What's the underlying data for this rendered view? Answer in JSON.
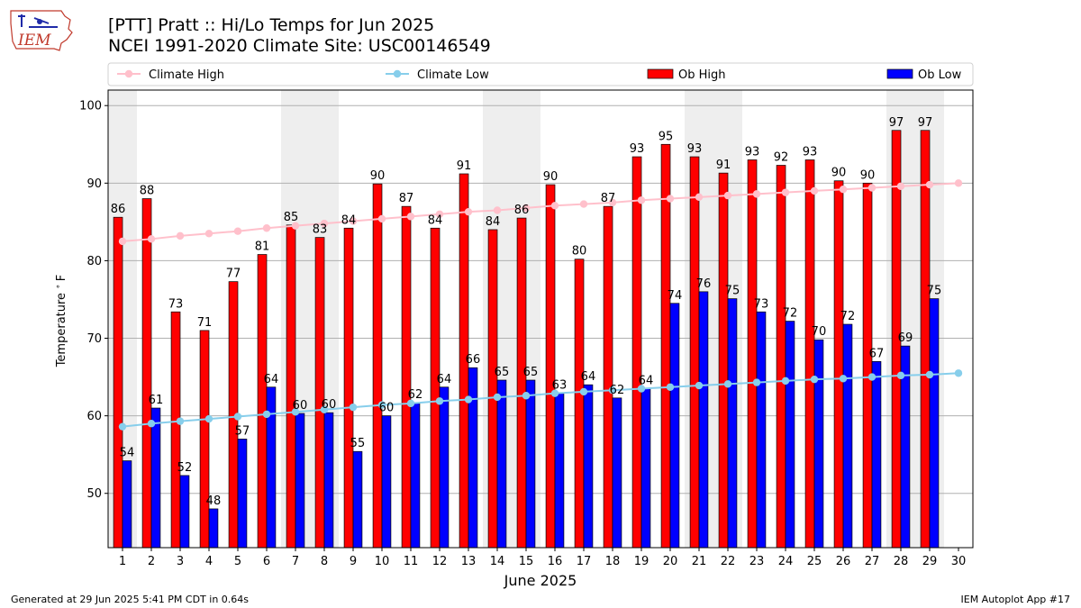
{
  "header": {
    "logo_text": "IEM",
    "title_line1": "[PTT] Pratt :: Hi/Lo Temps for Jun 2025",
    "title_line2": "NCEI 1991-2020 Climate Site: USC00146549"
  },
  "footer": {
    "generated": "Generated at 29 Jun 2025 5:41 PM CDT in 0.64s",
    "app": "IEM Autoplot App #17"
  },
  "colors": {
    "climate_high": "#ffc0cb",
    "climate_low": "#87ceeb",
    "ob_high": "#ff0000",
    "ob_low": "#0000ff",
    "weekend_shade": "#eeeeee",
    "grid": "#b0b0b0"
  },
  "chart_data": {
    "type": "bar",
    "title": "[PTT] Pratt :: Hi/Lo Temps for Jun 2025",
    "xlabel": "June 2025",
    "ylabel": "Temperature °F",
    "ylabel_parts": [
      "Temperature ",
      "∘",
      "F"
    ],
    "ylim": [
      43,
      102
    ],
    "yticks": [
      50,
      60,
      70,
      80,
      90,
      100
    ],
    "xlim": [
      0.5,
      30.5
    ],
    "grid": "y",
    "legend_position": "top",
    "days": [
      1,
      2,
      3,
      4,
      5,
      6,
      7,
      8,
      9,
      10,
      11,
      12,
      13,
      14,
      15,
      16,
      17,
      18,
      19,
      20,
      21,
      22,
      23,
      24,
      25,
      26,
      27,
      28,
      29,
      30
    ],
    "weekend_shaded_days": [
      [
        1,
        1
      ],
      [
        7,
        8
      ],
      [
        14,
        15
      ],
      [
        21,
        22
      ],
      [
        28,
        29
      ]
    ],
    "legend": [
      {
        "name": "Climate High",
        "kind": "line",
        "color": "#ffc0cb"
      },
      {
        "name": "Climate Low",
        "kind": "line",
        "color": "#87ceeb"
      },
      {
        "name": "Ob High",
        "kind": "bar",
        "color": "#ff0000"
      },
      {
        "name": "Ob Low",
        "kind": "bar",
        "color": "#0000ff"
      }
    ],
    "series": [
      {
        "name": "Ob High",
        "type": "bar",
        "values": [
          85.6,
          88,
          73.4,
          71,
          77.3,
          80.8,
          84.6,
          83,
          84.2,
          89.9,
          87,
          84.2,
          91.2,
          84,
          85.5,
          89.8,
          80.2,
          87,
          93.4,
          95,
          93.4,
          91.3,
          93,
          92.3,
          93,
          90.3,
          90,
          96.8,
          96.8
        ],
        "labels": [
          "86",
          "88",
          "73",
          "71",
          "77",
          "81",
          "85",
          "83",
          "84",
          "90",
          "87",
          "84",
          "91",
          "84",
          "86",
          "90",
          "80",
          "87",
          "93",
          "95",
          "93",
          "91",
          "93",
          "92",
          "93",
          "90",
          "90",
          "97",
          "97"
        ]
      },
      {
        "name": "Ob Low",
        "type": "bar",
        "values": [
          54.2,
          61,
          52.3,
          48,
          57,
          63.7,
          60.3,
          60.4,
          55.4,
          60,
          61.7,
          63.7,
          66.2,
          64.6,
          64.6,
          62.9,
          64,
          62.3,
          63.5,
          74.5,
          76,
          75.1,
          73.4,
          72.2,
          69.8,
          71.8,
          67,
          69,
          75.1
        ],
        "labels": [
          "54",
          "61",
          "52",
          "48",
          "57",
          "64",
          "60",
          "60",
          "55",
          "60",
          "62",
          "64",
          "66",
          "65",
          "65",
          "63",
          "64",
          "62",
          "64",
          "74",
          "76",
          "75",
          "73",
          "72",
          "70",
          "72",
          "67",
          "69",
          "75"
        ]
      },
      {
        "name": "Climate High",
        "type": "line",
        "values": [
          82.5,
          82.8,
          83.2,
          83.5,
          83.8,
          84.2,
          84.5,
          84.8,
          85.1,
          85.4,
          85.7,
          86,
          86.3,
          86.5,
          86.8,
          87.1,
          87.3,
          87.5,
          87.8,
          88,
          88.2,
          88.4,
          88.6,
          88.8,
          89,
          89.2,
          89.4,
          89.6,
          89.8,
          90
        ]
      },
      {
        "name": "Climate Low",
        "type": "line",
        "values": [
          58.6,
          59,
          59.3,
          59.6,
          59.9,
          60.2,
          60.5,
          60.8,
          61.1,
          61.4,
          61.6,
          61.9,
          62.1,
          62.4,
          62.6,
          62.9,
          63.1,
          63.3,
          63.5,
          63.7,
          63.9,
          64.1,
          64.3,
          64.5,
          64.7,
          64.8,
          65,
          65.2,
          65.3,
          65.5
        ]
      }
    ]
  }
}
